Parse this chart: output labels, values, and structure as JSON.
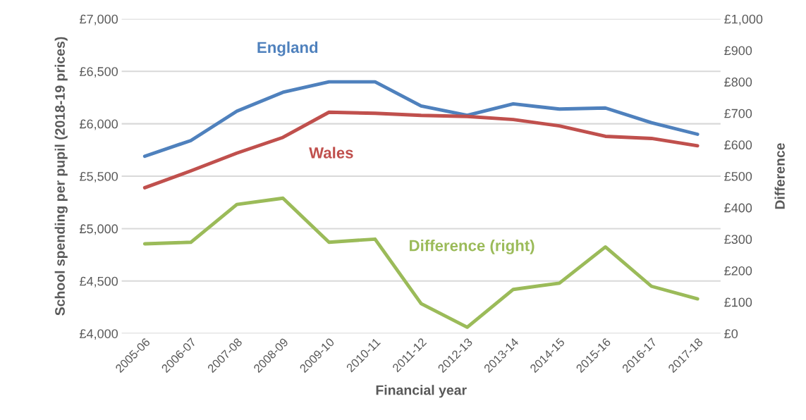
{
  "chart_data": {
    "type": "line",
    "xlabel": "Financial year",
    "ylabel": "School spending per pupil (2018-19 prices)",
    "y2label": "Difference",
    "categories": [
      "2005-06",
      "2006-07",
      "2007-08",
      "2008-09",
      "2009-10",
      "2010-11",
      "2011-12",
      "2012-13",
      "2013-14",
      "2014-15",
      "2015-16",
      "2016-17",
      "2017-18"
    ],
    "series": [
      {
        "name": "England",
        "color": "#4f81bd",
        "values": [
          5690,
          5840,
          6120,
          6300,
          6400,
          6400,
          6170,
          6080,
          6190,
          6140,
          6150,
          6010,
          5900
        ]
      },
      {
        "name": "Wales",
        "color": "#c0504d",
        "values": [
          5390,
          5550,
          5720,
          5870,
          6110,
          6100,
          6080,
          6070,
          6040,
          5980,
          5880,
          5860,
          5790
        ]
      },
      {
        "name": "Difference (right)",
        "color": "#9bbb59",
        "axis": "y2",
        "values": [
          285,
          290,
          410,
          430,
          290,
          300,
          95,
          20,
          140,
          160,
          275,
          150,
          110
        ]
      }
    ],
    "ylim": [
      4000,
      7000
    ],
    "yticks": [
      {
        "value": 4000,
        "label": "£4,000"
      },
      {
        "value": 4500,
        "label": "£4,500"
      },
      {
        "value": 5000,
        "label": "£5,000"
      },
      {
        "value": 5500,
        "label": "£5,500"
      },
      {
        "value": 6000,
        "label": "£6,000"
      },
      {
        "value": 6500,
        "label": "£6,500"
      },
      {
        "value": 7000,
        "label": "£7,000"
      }
    ],
    "y2lim": [
      0,
      1000
    ],
    "y2ticks": [
      {
        "value": 0,
        "label": "£0"
      },
      {
        "value": 100,
        "label": "£100"
      },
      {
        "value": 200,
        "label": "£200"
      },
      {
        "value": 300,
        "label": "£300"
      },
      {
        "value": 400,
        "label": "£400"
      },
      {
        "value": 500,
        "label": "£500"
      },
      {
        "value": 600,
        "label": "£600"
      },
      {
        "value": 700,
        "label": "£700"
      },
      {
        "value": 800,
        "label": "£800"
      },
      {
        "value": 900,
        "label": "£900"
      },
      {
        "value": 1000,
        "label": "£1,000"
      }
    ],
    "grid": "y",
    "legend": false,
    "marker": "none",
    "line_style": "solid"
  }
}
